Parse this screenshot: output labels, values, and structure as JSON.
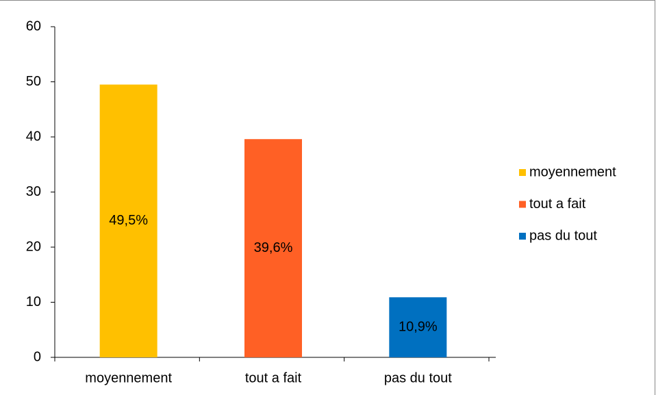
{
  "chart_data": {
    "type": "bar",
    "categories": [
      "moyennement",
      "tout a fait",
      "pas du tout"
    ],
    "values": [
      49.5,
      39.6,
      10.9
    ],
    "value_labels": [
      "49,5%",
      "39,6%",
      "10,9%"
    ],
    "colors": [
      "#ffc000",
      "#ff6025",
      "#0070c0"
    ],
    "ylim": [
      0,
      60
    ],
    "yticks": [
      0,
      10,
      20,
      30,
      40,
      50,
      60
    ],
    "grid": false,
    "legend": "right"
  }
}
